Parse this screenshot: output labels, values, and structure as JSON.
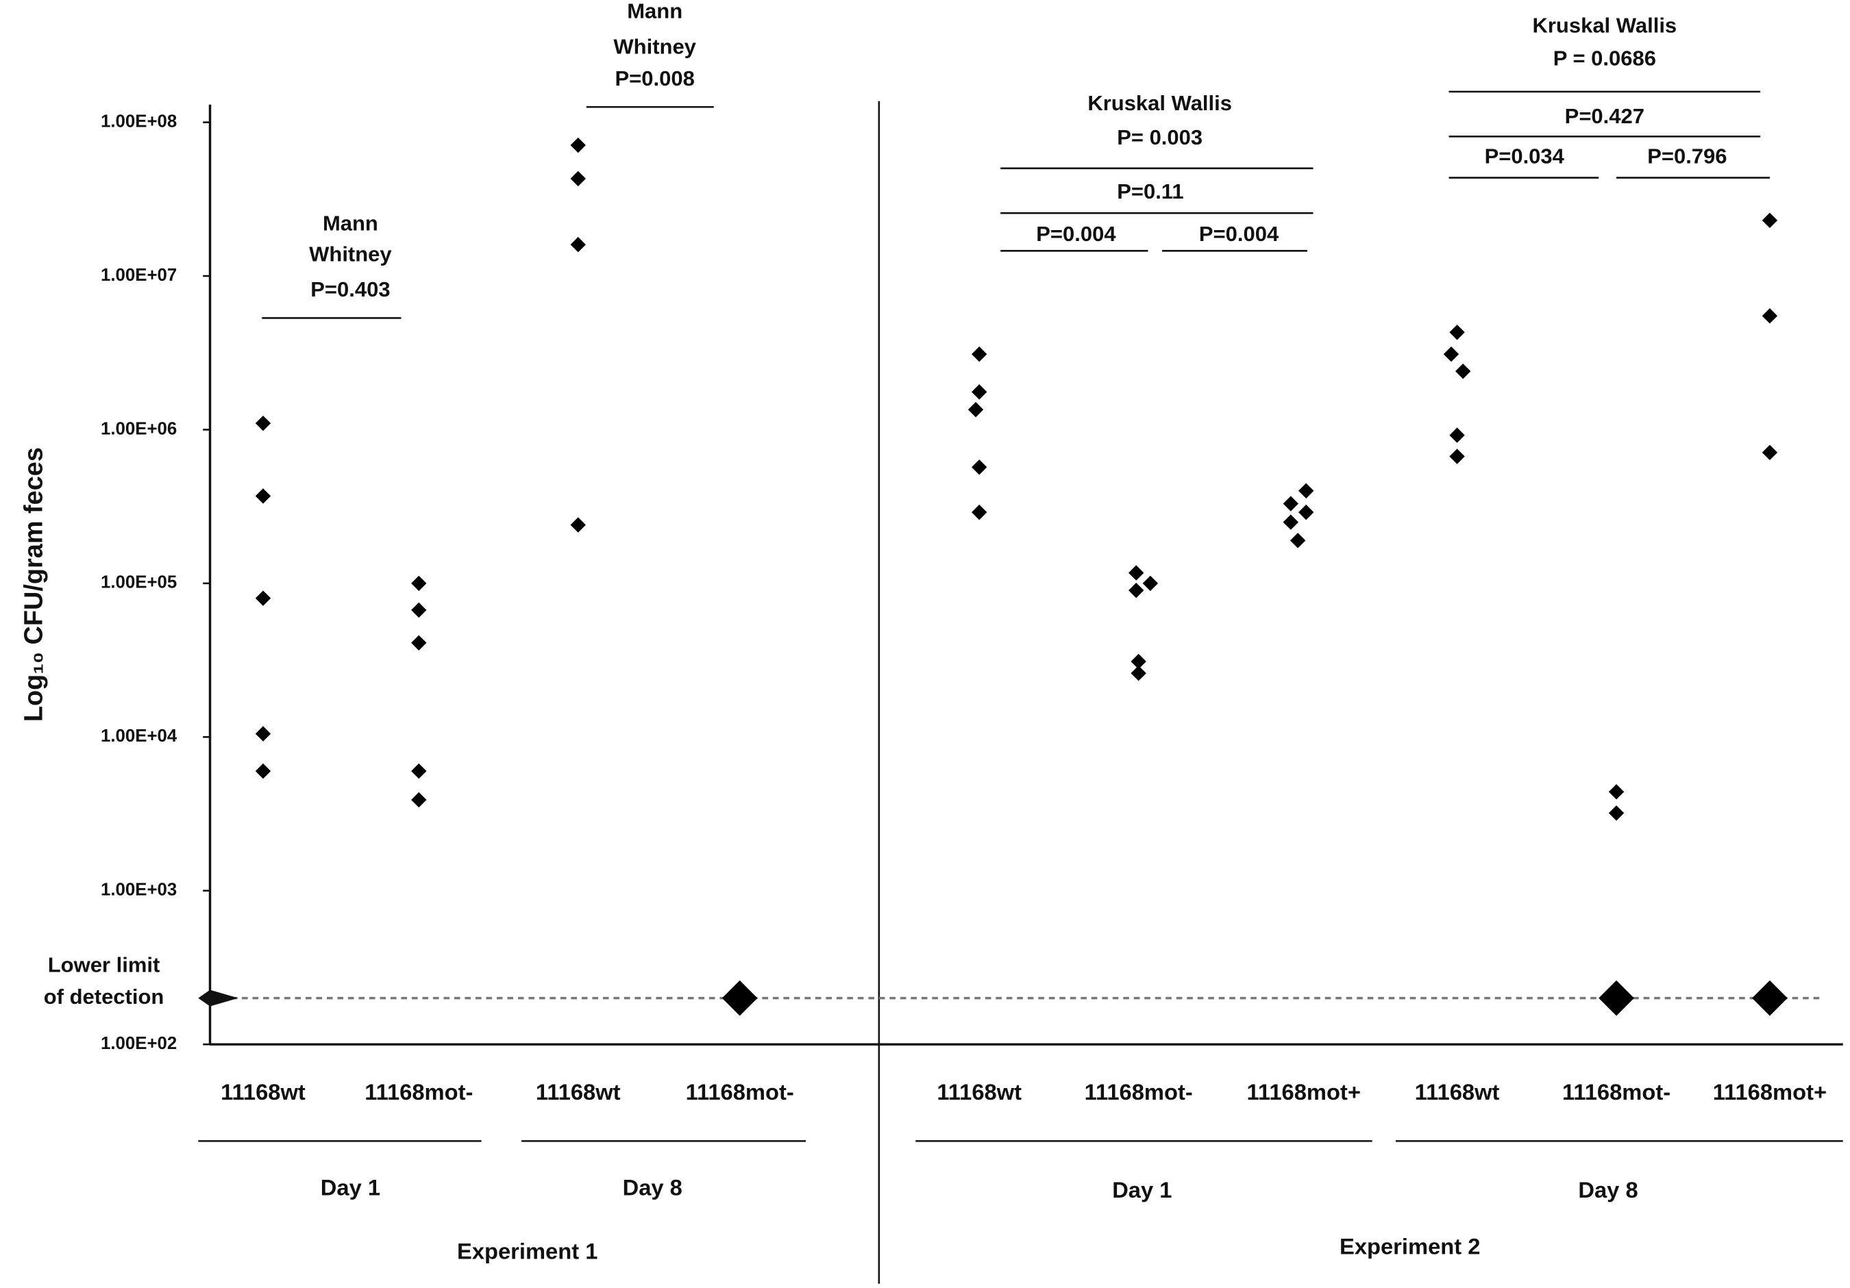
{
  "chart_data": {
    "type": "strip",
    "y_label": "Log₁₀ CFU/gram feces",
    "yscale": "log",
    "ylim": [
      100,
      100000000
    ],
    "yticks": [
      {
        "value": 100,
        "label": "1.00E+02"
      },
      {
        "value": 1000,
        "label": "1.00E+03"
      },
      {
        "value": 10000,
        "label": "1.00E+04"
      },
      {
        "value": 100000,
        "label": "1.00E+05"
      },
      {
        "value": 1000000,
        "label": "1.00E+06"
      },
      {
        "value": 10000000,
        "label": "1.00E+07"
      },
      {
        "value": 100000000,
        "label": "1.00E+08"
      }
    ],
    "color": "#000000",
    "categories": [
      "11168wt",
      "11168mot-",
      "11168wt",
      "11168mot-",
      "11168wt",
      "11168mot-",
      "11168mot+",
      "11168wt",
      "11168mot-",
      "11168mot+"
    ],
    "values": [
      [
        1100000,
        370000,
        80000,
        10500,
        6000
      ],
      [
        100000,
        67000,
        41000,
        6000,
        3900
      ],
      [
        71000000,
        43000000,
        16000000,
        240000
      ],
      [
        200
      ],
      [
        3100000,
        1760000,
        1350000,
        570000,
        290000
      ],
      [
        117000,
        100000,
        90000,
        31000,
        26000
      ],
      [
        400000,
        330000,
        290000,
        250000,
        190000
      ],
      [
        4300000,
        3100000,
        2400000,
        920000,
        670000
      ],
      [
        4400,
        3200,
        200
      ],
      [
        23000000,
        5500000,
        710000,
        200
      ]
    ],
    "detection_limit": {
      "value": 200,
      "label": [
        "Lower limit",
        "of detection"
      ]
    },
    "annotations": [
      {
        "lines": [
          "Mann",
          "Whitney",
          "P=0.403"
        ]
      },
      {
        "lines": [
          "Mann",
          "Whitney",
          "P=0.008"
        ]
      },
      {
        "lines": [
          "Kruskal Wallis",
          "P= 0.003"
        ]
      },
      {
        "lines": [
          "P=0.11"
        ]
      },
      {
        "lines": [
          "P=0.004"
        ]
      },
      {
        "lines": [
          "P=0.004"
        ]
      },
      {
        "lines": [
          "Kruskal Wallis",
          "P = 0.0686"
        ]
      },
      {
        "lines": [
          "P=0.427"
        ]
      },
      {
        "lines": [
          "P=0.034"
        ]
      },
      {
        "lines": [
          "P=0.796"
        ]
      }
    ],
    "groups": [
      "Day 1",
      "Day 8",
      "Day 1",
      "Day 8"
    ],
    "experiments": [
      "Experiment 1",
      "Experiment 2"
    ]
  }
}
